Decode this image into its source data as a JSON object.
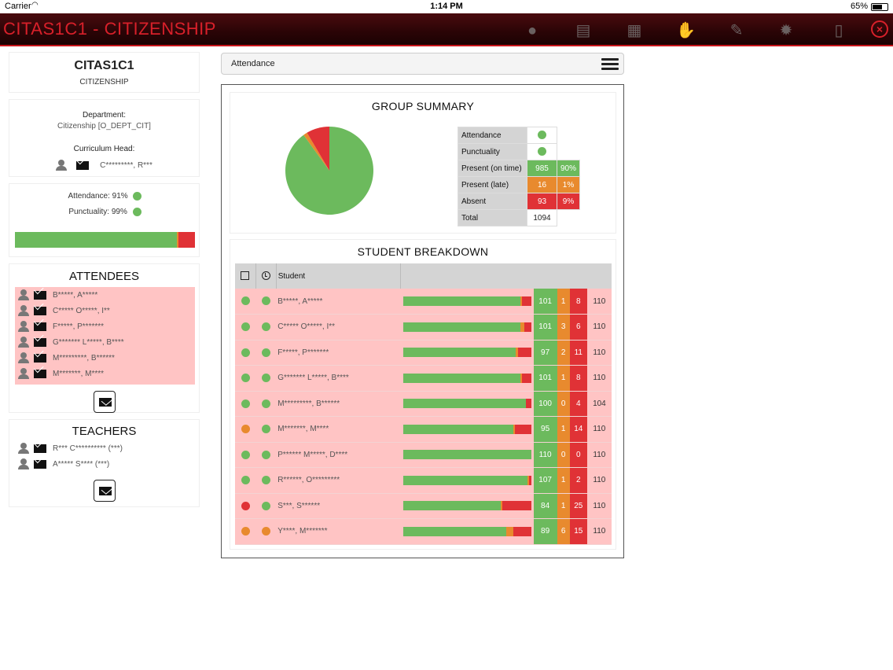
{
  "status_bar": {
    "carrier": "Carrier",
    "time": "1:14 PM",
    "battery": "65%"
  },
  "app": {
    "title": "CITAS1C1 - CITIZENSHIP"
  },
  "toolbar": {
    "icons": [
      "alert-icon",
      "register-icon",
      "timetable-icon",
      "handshake-icon",
      "pencil-icon",
      "settings-icon",
      "document-icon",
      "close-icon"
    ]
  },
  "class_info": {
    "code": "CITAS1C1",
    "name": "CITIZENSHIP"
  },
  "department": {
    "label": "Department:",
    "value": "Citizenship [O_DEPT_CIT]",
    "head_label": "Curriculum Head:",
    "head_name": "C*********, R***"
  },
  "stats": {
    "attendance_label": "Attendance: 91%",
    "punctuality_label": "Punctuality: 99%",
    "attendance_status": "#6cba5d",
    "punctuality_status": "#6cba5d",
    "bar_fractions": {
      "present": 0.9,
      "late": 0.01,
      "absent": 0.09
    }
  },
  "attendees": {
    "title": "ATTENDEES",
    "items": [
      "B*****, A*****",
      "C***** O*****, I**",
      "F*****, P*******",
      "G******* L*****, B****",
      "M*********, B******",
      "M*******, M****"
    ]
  },
  "teachers": {
    "title": "TEACHERS",
    "items": [
      "R*** C********** (***)",
      "A***** S**** (***)"
    ]
  },
  "view_selector": {
    "label": "Attendance"
  },
  "group_summary": {
    "title": "GROUP SUMMARY",
    "attendance_label": "Attendance",
    "punctuality_label": "Punctuality",
    "present_label": "Present (on time)",
    "present_count": "985",
    "present_pct": "90%",
    "late_label": "Present (late)",
    "late_count": "16",
    "late_pct": "1%",
    "absent_label": "Absent",
    "absent_count": "93",
    "absent_pct": "9%",
    "total_label": "Total",
    "total_count": "1094"
  },
  "pie": {
    "slices": [
      {
        "name": "Present (on time)",
        "value": 985,
        "color": "#6cba5d"
      },
      {
        "name": "Present (late)",
        "value": 16,
        "color": "#e88a2e"
      },
      {
        "name": "Absent",
        "value": 93,
        "color": "#e03236"
      }
    ]
  },
  "breakdown": {
    "title": "STUDENT BREAKDOWN",
    "student_header": "Student",
    "colors": {
      "present": "#6cba5d",
      "late": "#e88a2e",
      "absent": "#e03236"
    },
    "rows": [
      {
        "att": "g",
        "punc": "g",
        "name": "B*****, A*****",
        "present": 101,
        "late": 1,
        "absent": 8,
        "total": 110
      },
      {
        "att": "g",
        "punc": "g",
        "name": "C***** O*****, I**",
        "present": 101,
        "late": 3,
        "absent": 6,
        "total": 110
      },
      {
        "att": "g",
        "punc": "g",
        "name": "F*****, P*******",
        "present": 97,
        "late": 2,
        "absent": 11,
        "total": 110
      },
      {
        "att": "g",
        "punc": "g",
        "name": "G******* L*****, B****",
        "present": 101,
        "late": 1,
        "absent": 8,
        "total": 110
      },
      {
        "att": "g",
        "punc": "g",
        "name": "M*********, B******",
        "present": 100,
        "late": 0,
        "absent": 4,
        "total": 104
      },
      {
        "att": "o",
        "punc": "g",
        "name": "M*******, M****",
        "present": 95,
        "late": 1,
        "absent": 14,
        "total": 110
      },
      {
        "att": "g",
        "punc": "g",
        "name": "P****** M*****, D****",
        "present": 110,
        "late": 0,
        "absent": 0,
        "total": 110
      },
      {
        "att": "g",
        "punc": "g",
        "name": "R******, O*********",
        "present": 107,
        "late": 1,
        "absent": 2,
        "total": 110
      },
      {
        "att": "r",
        "punc": "g",
        "name": "S***, S******",
        "present": 84,
        "late": 1,
        "absent": 25,
        "total": 110
      },
      {
        "att": "o",
        "punc": "o",
        "name": "Y****, M*******",
        "present": 89,
        "late": 6,
        "absent": 15,
        "total": 110
      }
    ]
  }
}
